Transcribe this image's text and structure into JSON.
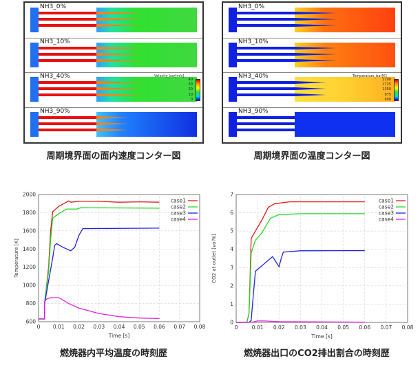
{
  "velocity_figure": {
    "caption": "周期境界面の面内速度コンター図",
    "panels": [
      "NH3_0%",
      "NH3_10%",
      "NH3_40%",
      "NH3_90%"
    ],
    "colorbar_title": "Velocity_bar[m/s]",
    "colorbar_ticks": [
      "40",
      "30",
      "20",
      "10",
      "0"
    ]
  },
  "temperature_figure": {
    "caption": "周期境界面の温度コンター図",
    "panels": [
      "NH3_0%",
      "NH3_10%",
      "NH3_40%",
      "NH3_90%"
    ],
    "colorbar_title": "Temperature_bar[K]",
    "colorbar_ticks": [
      "2100",
      "1725",
      "1350",
      "975",
      "600"
    ]
  },
  "chart_data": [
    {
      "type": "line",
      "caption": "燃焼器内平均温度の時刻歴",
      "xlabel": "Time [s]",
      "ylabel": "Temperature [K]",
      "xlim": [
        0,
        0.08
      ],
      "ylim": [
        600,
        2000
      ],
      "xticks": [
        "0",
        "0.01",
        "0.02",
        "0.03",
        "0.04",
        "0.05",
        "0.06",
        "0.07",
        "0.08"
      ],
      "yticks": [
        "600",
        "800",
        "1000",
        "1200",
        "1400",
        "1600",
        "1800",
        "2000"
      ],
      "grid": true,
      "legend": "top-right",
      "series": [
        {
          "name": "case1",
          "color": "#e01818",
          "x": [
            0,
            0.003,
            0.003,
            0.005,
            0.006,
            0.007,
            0.01,
            0.015,
            0.016,
            0.02,
            0.03,
            0.04,
            0.05,
            0.06
          ],
          "y": [
            630,
            630,
            800,
            1200,
            1600,
            1810,
            1870,
            1930,
            1915,
            1925,
            1925,
            1915,
            1920,
            1915
          ]
        },
        {
          "name": "case2",
          "color": "#22d822",
          "x": [
            0,
            0.003,
            0.003,
            0.005,
            0.006,
            0.007,
            0.01,
            0.014,
            0.019,
            0.021,
            0.06
          ],
          "y": [
            630,
            630,
            820,
            1150,
            1500,
            1740,
            1790,
            1840,
            1840,
            1855,
            1850
          ]
        },
        {
          "name": "case3",
          "color": "#2020e0",
          "x": [
            0,
            0.003,
            0.003,
            0.005,
            0.007,
            0.008,
            0.009,
            0.012,
            0.016,
            0.018,
            0.02,
            0.022,
            0.06
          ],
          "y": [
            630,
            630,
            800,
            1050,
            1300,
            1440,
            1460,
            1420,
            1380,
            1420,
            1550,
            1625,
            1630
          ]
        },
        {
          "name": "case4",
          "color": "#e020e0",
          "x": [
            0,
            0.003,
            0.003,
            0.004,
            0.006,
            0.01,
            0.015,
            0.02,
            0.03,
            0.04,
            0.05,
            0.06
          ],
          "y": [
            630,
            630,
            820,
            850,
            865,
            865,
            800,
            750,
            690,
            655,
            640,
            635
          ]
        }
      ]
    },
    {
      "type": "line",
      "caption": "燃焼器出口のCO2排出割合の時刻歴",
      "xlabel": "Time [s]",
      "ylabel": "CO2 at outlet [vol%]",
      "xlim": [
        0,
        0.08
      ],
      "ylim": [
        0,
        7
      ],
      "xticks": [
        "0",
        "0.01",
        "0.02",
        "0.03",
        "0.04",
        "0.05",
        "0.06",
        "0.07",
        "0.08"
      ],
      "yticks": [
        "0",
        "1",
        "2",
        "3",
        "4",
        "5",
        "6",
        "7"
      ],
      "grid": true,
      "legend": "top-right",
      "series": [
        {
          "name": "case1",
          "color": "#e01818",
          "x": [
            0,
            0.005,
            0.006,
            0.007,
            0.01,
            0.012,
            0.015,
            0.018,
            0.025,
            0.06
          ],
          "y": [
            0,
            0,
            0.5,
            4.6,
            5.2,
            5.6,
            6.3,
            6.5,
            6.6,
            6.6
          ]
        },
        {
          "name": "case2",
          "color": "#22d822",
          "x": [
            0,
            0.005,
            0.006,
            0.007,
            0.009,
            0.012,
            0.016,
            0.02,
            0.03,
            0.06
          ],
          "y": [
            0,
            0,
            0.5,
            3.8,
            4.5,
            4.9,
            5.7,
            5.9,
            5.95,
            5.95
          ]
        },
        {
          "name": "case3",
          "color": "#2020e0",
          "x": [
            0,
            0.006,
            0.007,
            0.008,
            0.009,
            0.011,
            0.014,
            0.017,
            0.02,
            0.021,
            0.022,
            0.03,
            0.06
          ],
          "y": [
            0,
            0,
            0.1,
            1.5,
            2.8,
            3.0,
            3.3,
            3.6,
            3.05,
            3.5,
            3.85,
            3.92,
            3.93
          ]
        },
        {
          "name": "case4",
          "color": "#e020e0",
          "x": [
            0,
            0.007,
            0.01,
            0.013,
            0.02,
            0.06
          ],
          "y": [
            0,
            0,
            0.08,
            0.08,
            0.04,
            0.01
          ]
        }
      ]
    }
  ]
}
